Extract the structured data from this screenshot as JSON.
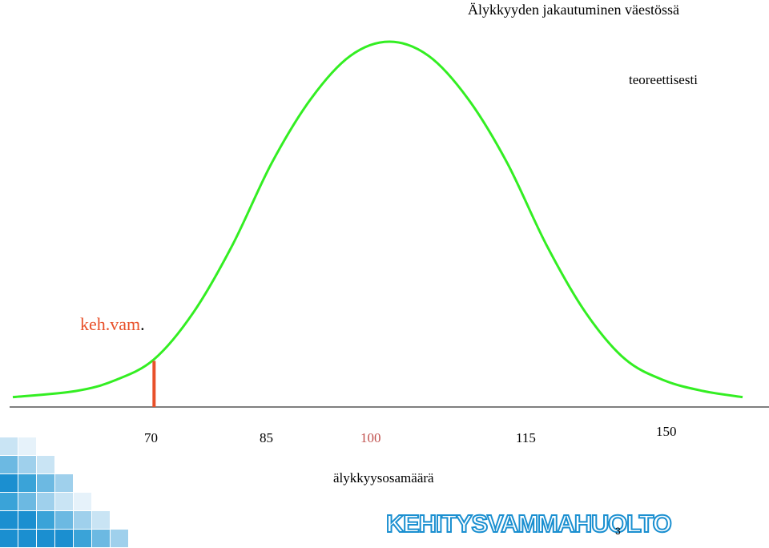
{
  "chart_data": {
    "type": "line",
    "title": "Älykkyyden jakautuminen väestössä",
    "xlabel": "älykkyysosamäärä",
    "ylabel": "",
    "x_tick_labels": [
      "70",
      "85",
      "100",
      "115",
      "150"
    ],
    "xlim": [
      50,
      150
    ],
    "series": [
      {
        "name": "teoreettisesti",
        "color": "#33ee22",
        "x": [
          52,
          60,
          65,
          70,
          75,
          80,
          85,
          90,
          95,
          100,
          105,
          110,
          115,
          120,
          125,
          130,
          135,
          140,
          145
        ],
        "y": [
          0.003,
          0.02,
          0.05,
          0.109,
          0.24,
          0.43,
          0.66,
          0.84,
          0.96,
          1.0,
          0.96,
          0.84,
          0.66,
          0.43,
          0.24,
          0.11,
          0.05,
          0.02,
          0.003
        ]
      }
    ],
    "cutoff": {
      "x": 70,
      "label": "keh.vam.",
      "color": "#e8502a"
    },
    "highlight_tick": {
      "label": "100",
      "color": "#c0504d"
    }
  },
  "annotation": {
    "text": "keh.vam",
    "dot": "."
  },
  "footer": {
    "logo_text": "KEHITYSVAMMAHUOLTO",
    "page_number": "3"
  },
  "colors": {
    "curve": "#33ee22",
    "cutoff": "#e8502a",
    "axis": "#555555",
    "logo": "#1a8fd0"
  }
}
